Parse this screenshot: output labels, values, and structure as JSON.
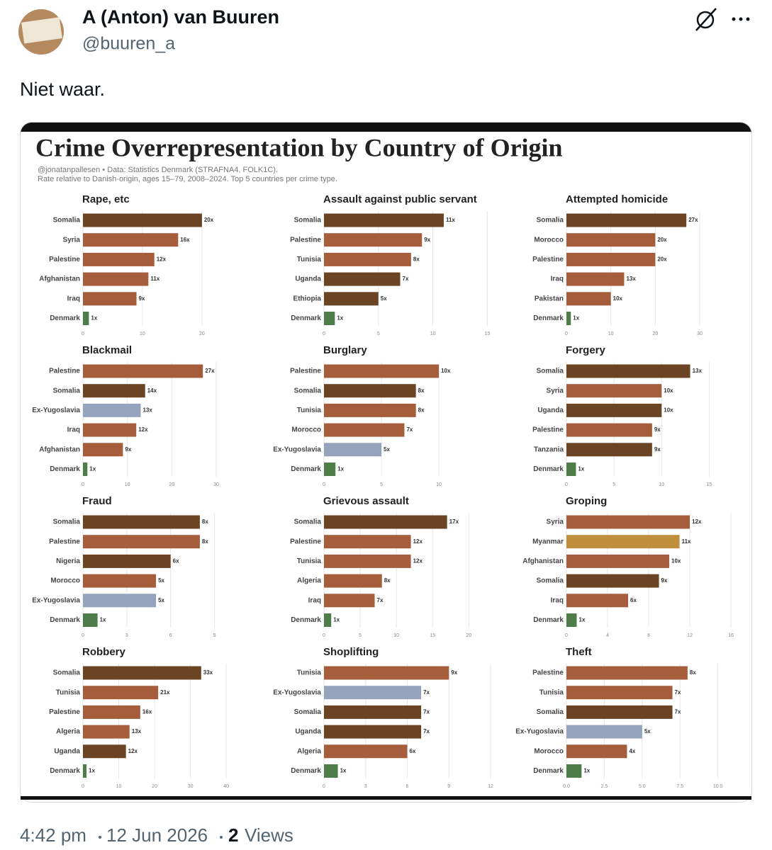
{
  "tweet": {
    "author_name": "A (Anton) van Buuren",
    "handle": "@buuren_a",
    "text": "Niet waar.",
    "time": "4:42 pm",
    "date": "12 Jun 2026",
    "views_count": 2,
    "views_label": "Views"
  },
  "figure": {
    "title": "Crime Overrepresentation by Country of Origin",
    "source": "@jonatanpallesen • Data: Statistics Denmark (STRAFNA4, FOLK1C).",
    "note": "Rate relative to Danish-origin, ages 15–79, 2008–2024. Top 5 countries per crime type."
  },
  "chart_data": [
    {
      "type": "bar",
      "orientation": "horizontal",
      "title": "Rape, etc",
      "categories": [
        "Somalia",
        "Syria",
        "Palestine",
        "Afghanistan",
        "Iraq",
        "Denmark"
      ],
      "values": [
        20,
        16,
        12,
        11,
        9,
        1
      ],
      "value_labels": [
        "20x",
        "16x",
        "12x",
        "11x",
        "9x",
        "1x"
      ],
      "colors": [
        "#6b4423",
        "#a65d3b",
        "#a65d3b",
        "#a65d3b",
        "#a65d3b",
        "#4f7d4a"
      ],
      "xlim": [
        0,
        28
      ],
      "xticks": [
        0,
        10,
        20
      ],
      "grid": true
    },
    {
      "type": "bar",
      "orientation": "horizontal",
      "title": "Assault against public servant",
      "categories": [
        "Somalia",
        "Palestine",
        "Tunisia",
        "Uganda",
        "Ethiopia",
        "Denmark"
      ],
      "values": [
        11,
        9,
        8,
        7,
        5,
        1
      ],
      "value_labels": [
        "11x",
        "9x",
        "8x",
        "7x",
        "5x",
        "1x"
      ],
      "colors": [
        "#6b4423",
        "#a65d3b",
        "#a65d3b",
        "#6b4423",
        "#6b4423",
        "#4f7d4a"
      ],
      "xlim": [
        0,
        15.3
      ],
      "xticks": [
        0,
        5,
        10,
        15
      ],
      "grid": true
    },
    {
      "type": "bar",
      "orientation": "horizontal",
      "title": "Attempted homicide",
      "categories": [
        "Somalia",
        "Morocco",
        "Palestine",
        "Iraq",
        "Pakistan",
        "Denmark"
      ],
      "values": [
        27,
        20,
        20,
        13,
        10,
        1
      ],
      "value_labels": [
        "27x",
        "20x",
        "20x",
        "13x",
        "10x",
        "1x"
      ],
      "colors": [
        "#6b4423",
        "#a65d3b",
        "#a65d3b",
        "#a65d3b",
        "#a65d3b",
        "#4f7d4a"
      ],
      "xlim": [
        0,
        37.5
      ],
      "xticks": [
        0,
        10,
        20,
        30
      ],
      "grid": true
    },
    {
      "type": "bar",
      "orientation": "horizontal",
      "title": "Blackmail",
      "categories": [
        "Palestine",
        "Somalia",
        "Ex-Yugoslavia",
        "Iraq",
        "Afghanistan",
        "Denmark"
      ],
      "values": [
        27,
        14,
        13,
        12,
        9,
        1
      ],
      "value_labels": [
        "27x",
        "14x",
        "13x",
        "12x",
        "9x",
        "1x"
      ],
      "colors": [
        "#a65d3b",
        "#6b4423",
        "#95a3bd",
        "#a65d3b",
        "#a65d3b",
        "#4f7d4a"
      ],
      "xlim": [
        0,
        37.5
      ],
      "xticks": [
        0,
        10,
        20,
        30
      ],
      "grid": true
    },
    {
      "type": "bar",
      "orientation": "horizontal",
      "title": "Burglary",
      "categories": [
        "Palestine",
        "Somalia",
        "Tunisia",
        "Morocco",
        "Ex-Yugoslavia",
        "Denmark"
      ],
      "values": [
        10,
        8,
        8,
        7,
        5,
        1
      ],
      "value_labels": [
        "10x",
        "8x",
        "8x",
        "7x",
        "5x",
        "1x"
      ],
      "colors": [
        "#a65d3b",
        "#6b4423",
        "#a65d3b",
        "#a65d3b",
        "#95a3bd",
        "#4f7d4a"
      ],
      "xlim": [
        0,
        14.5
      ],
      "xticks": [
        0,
        5,
        10
      ],
      "grid": true
    },
    {
      "type": "bar",
      "orientation": "horizontal",
      "title": "Forgery",
      "categories": [
        "Somalia",
        "Syria",
        "Uganda",
        "Palestine",
        "Tanzania",
        "Denmark"
      ],
      "values": [
        13,
        10,
        10,
        9,
        9,
        1
      ],
      "value_labels": [
        "13x",
        "10x",
        "10x",
        "9x",
        "9x",
        "1x"
      ],
      "colors": [
        "#6b4423",
        "#a65d3b",
        "#6b4423",
        "#a65d3b",
        "#6b4423",
        "#4f7d4a"
      ],
      "xlim": [
        0,
        17.5
      ],
      "xticks": [
        0,
        5,
        10,
        15
      ],
      "grid": true
    },
    {
      "type": "bar",
      "orientation": "horizontal",
      "title": "Fraud",
      "categories": [
        "Somalia",
        "Palestine",
        "Nigeria",
        "Morocco",
        "Ex-Yugoslavia",
        "Denmark"
      ],
      "values": [
        8,
        8,
        6,
        5,
        5,
        1
      ],
      "value_labels": [
        "8x",
        "8x",
        "6x",
        "5x",
        "5x",
        "1x"
      ],
      "colors": [
        "#6b4423",
        "#a65d3b",
        "#6b4423",
        "#a65d3b",
        "#95a3bd",
        "#4f7d4a"
      ],
      "xlim": [
        0,
        11.4
      ],
      "xticks": [
        0,
        3,
        6,
        9
      ],
      "grid": true
    },
    {
      "type": "bar",
      "orientation": "horizontal",
      "title": "Grievous assault",
      "categories": [
        "Somalia",
        "Palestine",
        "Tunisia",
        "Algeria",
        "Iraq",
        "Denmark"
      ],
      "values": [
        17,
        12,
        12,
        8,
        7,
        1
      ],
      "value_labels": [
        "17x",
        "12x",
        "12x",
        "8x",
        "7x",
        "1x"
      ],
      "colors": [
        "#6b4423",
        "#a65d3b",
        "#a65d3b",
        "#a65d3b",
        "#a65d3b",
        "#4f7d4a"
      ],
      "xlim": [
        0,
        23
      ],
      "xticks": [
        0,
        5,
        10,
        15,
        20
      ],
      "grid": true
    },
    {
      "type": "bar",
      "orientation": "horizontal",
      "title": "Groping",
      "categories": [
        "Syria",
        "Myanmar",
        "Afghanistan",
        "Somalia",
        "Iraq",
        "Denmark"
      ],
      "values": [
        12,
        11,
        10,
        9,
        6,
        1
      ],
      "value_labels": [
        "12x",
        "11x",
        "10x",
        "9x",
        "6x",
        "1x"
      ],
      "colors": [
        "#a65d3b",
        "#c08f3e",
        "#a65d3b",
        "#6b4423",
        "#a65d3b",
        "#4f7d4a"
      ],
      "xlim": [
        0,
        16.2
      ],
      "xticks": [
        0,
        4,
        8,
        12,
        16
      ],
      "grid": true
    },
    {
      "type": "bar",
      "orientation": "horizontal",
      "title": "Robbery",
      "categories": [
        "Somalia",
        "Tunisia",
        "Palestine",
        "Algeria",
        "Uganda",
        "Denmark"
      ],
      "values": [
        33,
        21,
        16,
        13,
        12,
        1
      ],
      "value_labels": [
        "33x",
        "21x",
        "16x",
        "13x",
        "12x",
        "1x"
      ],
      "colors": [
        "#6b4423",
        "#a65d3b",
        "#a65d3b",
        "#a65d3b",
        "#6b4423",
        "#4f7d4a"
      ],
      "xlim": [
        0,
        46.5
      ],
      "xticks": [
        0,
        10,
        20,
        30,
        40
      ],
      "grid": true
    },
    {
      "type": "bar",
      "orientation": "horizontal",
      "title": "Shoplifting",
      "categories": [
        "Tunisia",
        "Ex-Yugoslavia",
        "Somalia",
        "Uganda",
        "Algeria",
        "Denmark"
      ],
      "values": [
        9,
        7,
        7,
        7,
        6,
        1
      ],
      "value_labels": [
        "9x",
        "7x",
        "7x",
        "7x",
        "6x",
        "1x"
      ],
      "colors": [
        "#a65d3b",
        "#95a3bd",
        "#6b4423",
        "#6b4423",
        "#a65d3b",
        "#4f7d4a"
      ],
      "xlim": [
        0,
        12
      ],
      "xticks": [
        0,
        3,
        6,
        9,
        12
      ],
      "grid": true
    },
    {
      "type": "bar",
      "orientation": "horizontal",
      "title": "Theft",
      "categories": [
        "Palestine",
        "Tunisia",
        "Somalia",
        "Ex-Yugoslavia",
        "Morocco",
        "Denmark"
      ],
      "values": [
        8,
        7,
        7,
        5,
        4,
        1
      ],
      "value_labels": [
        "8x",
        "7x",
        "7x",
        "5x",
        "4x",
        "1x"
      ],
      "colors": [
        "#a65d3b",
        "#a65d3b",
        "#6b4423",
        "#95a3bd",
        "#a65d3b",
        "#4f7d4a"
      ],
      "xlim": [
        0,
        11
      ],
      "xticks": [
        {
          "value": 0,
          "label": "0.0"
        },
        {
          "value": 2.5,
          "label": "2.5"
        },
        {
          "value": 5,
          "label": "5.0"
        },
        {
          "value": 7.5,
          "label": "7.5"
        },
        {
          "value": 10,
          "label": "10.0"
        }
      ],
      "grid": true
    }
  ]
}
